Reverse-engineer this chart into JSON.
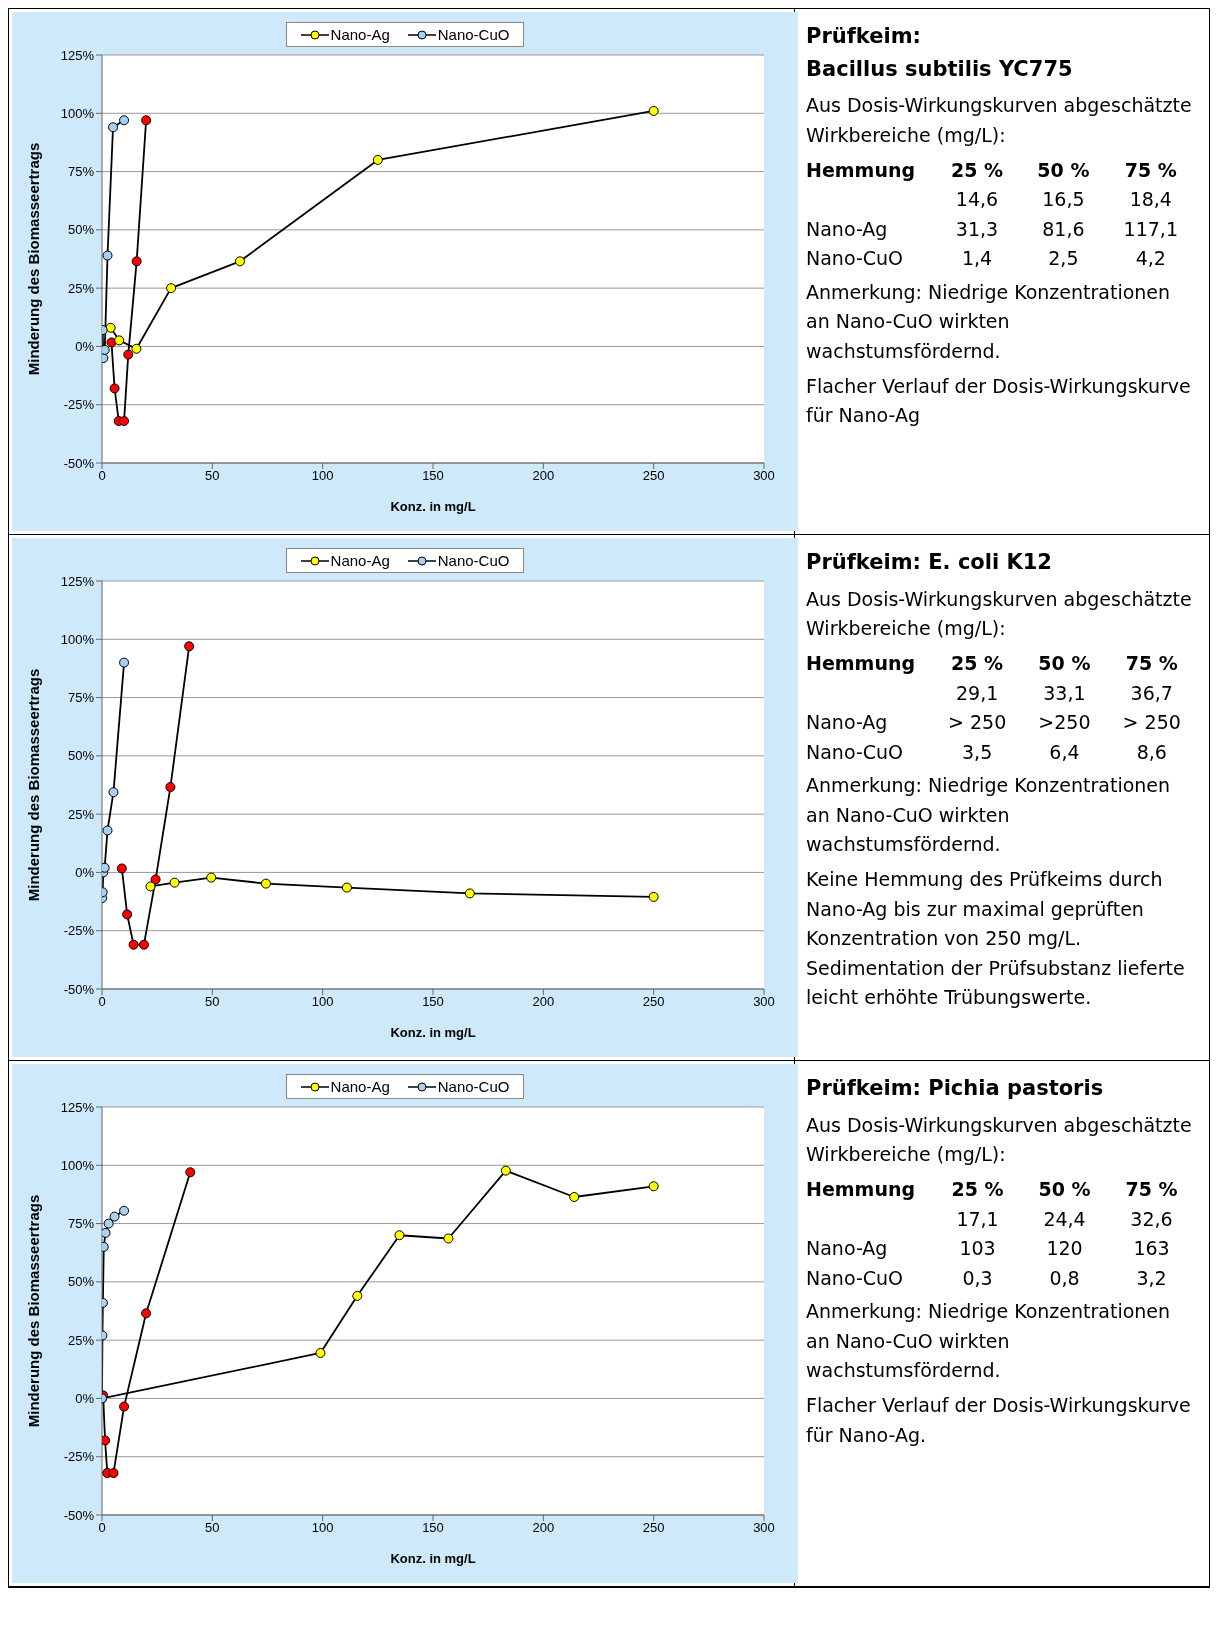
{
  "chart_data": [
    {
      "type": "line",
      "xlabel": "Konz. in mg/L",
      "ylabel": "Minderung des Biomasseertrags",
      "xlim": [
        0,
        300
      ],
      "xticks": [
        0,
        50,
        100,
        150,
        200,
        250,
        300
      ],
      "ylim": [
        -50,
        125
      ],
      "yticks": [
        {
          "value": -50,
          "label": "-50%"
        },
        {
          "value": -25,
          "label": "-25%"
        },
        {
          "value": 0,
          "label": "0%"
        },
        {
          "value": 25,
          "label": "25%"
        },
        {
          "value": 50,
          "label": "50%"
        },
        {
          "value": 75,
          "label": "75%"
        },
        {
          "value": 100,
          "label": "100%"
        },
        {
          "value": 125,
          "label": "125%"
        }
      ],
      "grid": "y",
      "legend": "top",
      "marker": "circle",
      "line_style": "solid",
      "series": [
        {
          "color": "#ff0000",
          "x": [
            4.3,
            5.7,
            7.6,
            10,
            11.9,
            15.7,
            20
          ],
          "values": [
            1.7,
            -18,
            -32,
            -32,
            -3.5,
            36.5,
            97
          ]
        },
        {
          "name": "Nano-Ag",
          "color": "#ffff00",
          "x": [
            3.9,
            7.8,
            15.6,
            31.3,
            62.5,
            125,
            250
          ],
          "values": [
            8,
            2.6,
            -1,
            25,
            36.5,
            80,
            101
          ]
        },
        {
          "name": "Nano-CuO",
          "color": "#a8d0f0",
          "x": [
            0.3,
            0.6,
            1.25,
            2.5,
            5,
            10
          ],
          "values": [
            7,
            -5,
            -1.5,
            39,
            94,
            97
          ]
        }
      ]
    },
    {
      "type": "other",
      "title": "Prüfkeim:\nBacillus subtilis YC775",
      "annotations": [
        "Aus Dosis-Wirkungskurven abgeschätzte Wirkbereiche (mg/L):",
        "Hemmung\t25 %\t50 %\t75 %",
        "\t14,6\t16,5\t18,4",
        "Nano-Ag\t31,3\t81,6\t117,1",
        "Nano-CuO\t1,4\t2,5\t4,2",
        "Anmerkung: Niedrige Konzentrationen an Nano-CuO wirkten wachstumsfördernd.",
        "Flacher Verlauf der Dosis-Wirkungskurve für Nano-Ag"
      ]
    },
    {
      "type": "line",
      "xlabel": "Konz. in mg/L",
      "ylabel": "Minderung des Biomasseertrags",
      "xlim": [
        0,
        300
      ],
      "xticks": [
        0,
        50,
        100,
        150,
        200,
        250,
        300
      ],
      "ylim": [
        -50,
        125
      ],
      "yticks": [
        {
          "value": -50,
          "label": "-50%"
        },
        {
          "value": -25,
          "label": "-25%"
        },
        {
          "value": 0,
          "label": "0%"
        },
        {
          "value": 25,
          "label": "25%"
        },
        {
          "value": 50,
          "label": "50%"
        },
        {
          "value": 75,
          "label": "75%"
        },
        {
          "value": 100,
          "label": "100%"
        },
        {
          "value": 125,
          "label": "125%"
        }
      ],
      "grid": "y",
      "legend": "top",
      "marker": "circle",
      "line_style": "solid",
      "series": [
        {
          "color": "#ff0000",
          "x": [
            9,
            11.4,
            14.3,
            19,
            24.3,
            31,
            39.5
          ],
          "values": [
            1.7,
            -18,
            -31,
            -31,
            -3,
            36.6,
            97
          ]
        },
        {
          "name": "Nano-Ag",
          "color": "#ffff00",
          "x": [
            22,
            32.9,
            49.5,
            74.3,
            111,
            166.7,
            250
          ],
          "values": [
            -6,
            -4.4,
            -2.2,
            -4.8,
            -6.5,
            -9,
            -10.5
          ]
        },
        {
          "name": "Nano-CuO",
          "color": "#a8d0f0",
          "x": [
            0.1,
            0.3,
            0.6,
            1.2,
            2.5,
            5.2,
            10
          ],
          "values": [
            -11,
            -8.5,
            0,
            2,
            18,
            34.4,
            90
          ]
        }
      ]
    },
    {
      "type": "other",
      "title": "Prüfkeim: E. coli K12",
      "annotations": [
        "Aus Dosis-Wirkungskurven abgeschätzte Wirkbereiche (mg/L):",
        "Hemmung\t25 %\t50 %\t75 %",
        "\t29,1\t33,1\t36,7",
        "Nano-Ag\t> 250\t>250\t> 250",
        "Nano-CuO\t3,5\t6,4\t8,6",
        "Anmerkung: Niedrige Konzentrationen an Nano-CuO wirkten wachstumsfördernd.",
        "Keine Hemmung des Prüfkeims durch Nano-Ag bis zur maximal geprüften Konzentration von 250 mg/L. Sedimentation der Prüfsubstanz lieferte leicht erhöhte Trübungswerte."
      ]
    },
    {
      "type": "line",
      "xlabel": "Konz. in mg/L",
      "ylabel": "Minderung des Biomasseertrags",
      "xlim": [
        0,
        300
      ],
      "xticks": [
        0,
        50,
        100,
        150,
        200,
        250,
        300
      ],
      "ylim": [
        -50,
        125
      ],
      "yticks": [
        {
          "value": -50,
          "label": "-50%"
        },
        {
          "value": -25,
          "label": "-25%"
        },
        {
          "value": 0,
          "label": "0%"
        },
        {
          "value": 25,
          "label": "25%"
        },
        {
          "value": 50,
          "label": "50%"
        },
        {
          "value": 75,
          "label": "75%"
        },
        {
          "value": 100,
          "label": "100%"
        },
        {
          "value": 125,
          "label": "125%"
        }
      ],
      "grid": "y",
      "legend": "top",
      "marker": "circle",
      "line_style": "solid",
      "series": [
        {
          "color": "#ff0000",
          "x": [
            0.5,
            1.4,
            2.4,
            5.2,
            10,
            20,
            40
          ],
          "values": [
            1.3,
            -18,
            -32,
            -32,
            -3.5,
            36.5,
            97
          ]
        },
        {
          "name": "Nano-Ag",
          "color": "#ffff00",
          "x": [
            0,
            99,
            115.7,
            134.8,
            157,
            183,
            214,
            250
          ],
          "values": [
            0,
            19.5,
            44,
            70,
            68.6,
            97.7,
            86.4,
            91
          ]
        },
        {
          "name": "Nano-CuO",
          "color": "#a8d0f0",
          "x": [
            0,
            0.2,
            0.4,
            0.8,
            1.6,
            3,
            5.7,
            10
          ],
          "values": [
            0,
            27,
            41,
            65,
            71,
            75,
            78,
            80.5
          ]
        }
      ]
    },
    {
      "type": "other",
      "title": "Prüfkeim: Pichia pastoris",
      "annotations": [
        "Aus Dosis-Wirkungskurven abgeschätzte Wirkbereiche (mg/L):",
        "Hemmung\t25 %\t50 %\t75 %",
        "\t17,1\t24,4\t32,6",
        "Nano-Ag\t103\t120\t163",
        "Nano-CuO\t0,3\t0,8\t3,2",
        "Anmerkung: Niedrige Konzentrationen an Nano-CuO wirkten wachstumsfördernd.",
        "Flacher Verlauf der Dosis-Wirkungskurve für Nano-Ag."
      ]
    }
  ]
}
